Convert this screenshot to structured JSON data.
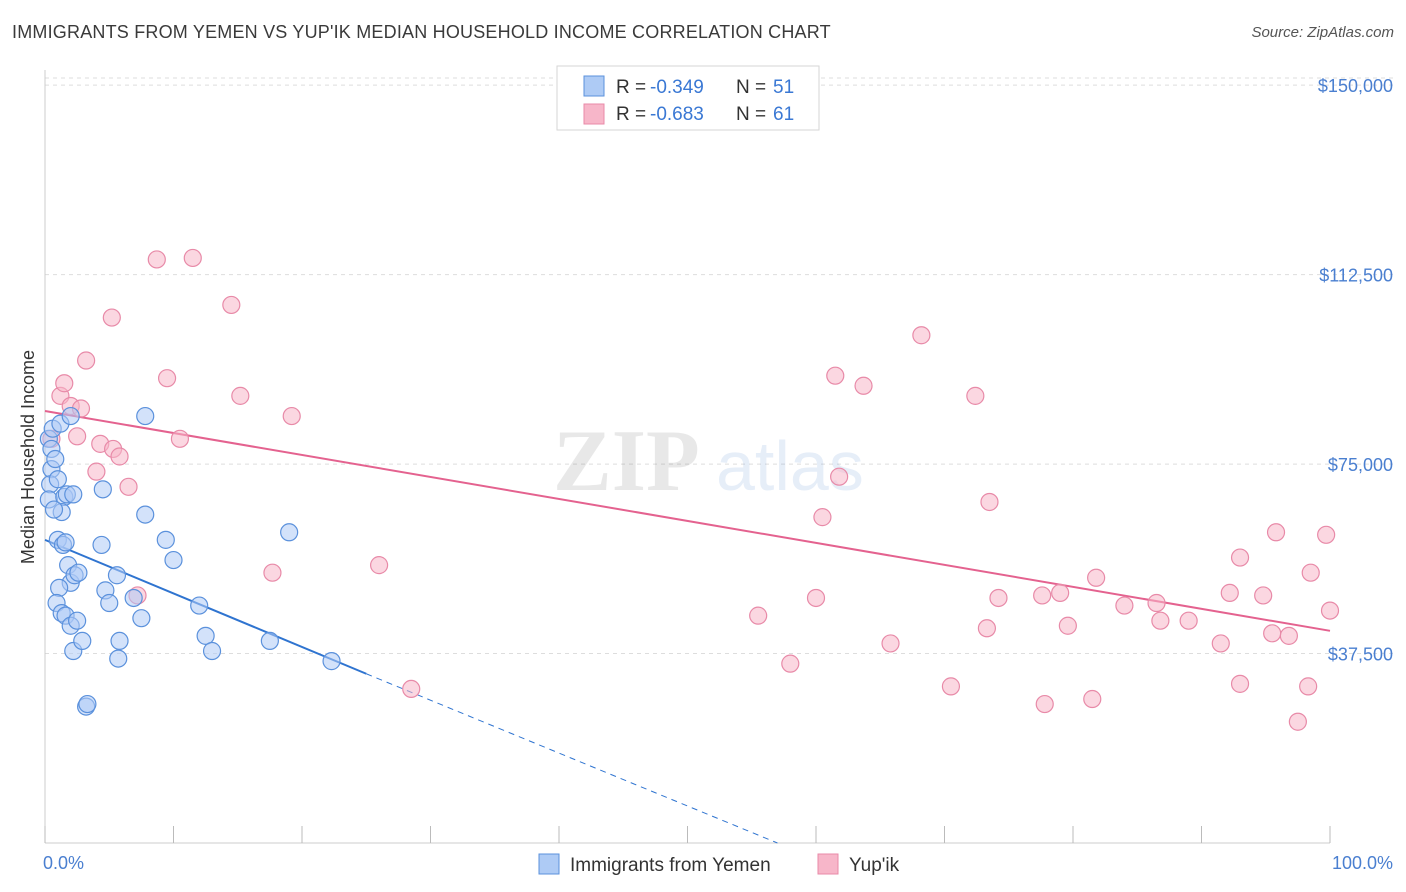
{
  "title": "IMMIGRANTS FROM YEMEN VS YUP'IK MEDIAN HOUSEHOLD INCOME CORRELATION CHART",
  "source": "Source: ZipAtlas.com",
  "colors": {
    "blue_fill": "#aecbf5",
    "blue_stroke": "#5b91dc",
    "blue_line": "#2f74d0",
    "pink_fill": "#f7b6c9",
    "pink_stroke": "#e88aa8",
    "pink_line": "#e4628f",
    "tick_label": "#4a7fd0",
    "grid": "#dddddd"
  },
  "legend": {
    "rows": [
      {
        "r_label": "R = ",
        "r_value": "-0.349",
        "n_label": "N = ",
        "n_value": "51",
        "color": "blue"
      },
      {
        "r_label": "R = ",
        "r_value": "-0.683",
        "n_label": "N = ",
        "n_value": "61",
        "color": "pink"
      }
    ]
  },
  "chart_data": {
    "type": "scatter",
    "title": "IMMIGRANTS FROM YEMEN VS YUP'IK MEDIAN HOUSEHOLD INCOME CORRELATION CHART",
    "xlabel": "",
    "ylabel": "Median Household Income",
    "xlim": [
      0,
      100
    ],
    "ylim": [
      0,
      153000
    ],
    "x_tick_labels": [
      "0.0%",
      "100.0%"
    ],
    "y_ticks": [
      37500,
      75000,
      112500,
      150000
    ],
    "y_tick_labels": [
      "$37,500",
      "$75,000",
      "$112,500",
      "$150,000"
    ],
    "grid": "horizontal dashed",
    "legend_placement": "top-center",
    "watermark": "ZIPatlas",
    "series": [
      {
        "name": "Immigrants from Yemen",
        "color": "blue",
        "points": [
          [
            0.3,
            80000
          ],
          [
            0.5,
            78000
          ],
          [
            0.6,
            82000
          ],
          [
            0.5,
            74000
          ],
          [
            0.4,
            71000
          ],
          [
            0.3,
            68000
          ],
          [
            0.8,
            76000
          ],
          [
            1.0,
            72000
          ],
          [
            1.2,
            83000
          ],
          [
            1.5,
            68500
          ],
          [
            1.7,
            69000
          ],
          [
            2.0,
            84500
          ],
          [
            2.2,
            69000
          ],
          [
            1.0,
            60000
          ],
          [
            1.4,
            59000
          ],
          [
            1.6,
            59500
          ],
          [
            1.8,
            55000
          ],
          [
            2.0,
            51500
          ],
          [
            2.3,
            53000
          ],
          [
            2.6,
            53500
          ],
          [
            1.1,
            50500
          ],
          [
            0.9,
            47500
          ],
          [
            1.3,
            45500
          ],
          [
            1.6,
            45000
          ],
          [
            2.0,
            43000
          ],
          [
            2.2,
            38000
          ],
          [
            2.5,
            44000
          ],
          [
            2.9,
            40000
          ],
          [
            3.2,
            27000
          ],
          [
            3.3,
            27500
          ],
          [
            4.4,
            59000
          ],
          [
            4.5,
            70000
          ],
          [
            4.7,
            50000
          ],
          [
            5.0,
            47500
          ],
          [
            5.6,
            53000
          ],
          [
            5.8,
            40000
          ],
          [
            5.7,
            36500
          ],
          [
            6.9,
            48500
          ],
          [
            7.5,
            44500
          ],
          [
            7.8,
            65000
          ],
          [
            7.8,
            84500
          ],
          [
            9.4,
            60000
          ],
          [
            10.0,
            56000
          ],
          [
            12.0,
            47000
          ],
          [
            12.5,
            41000
          ],
          [
            13.0,
            38000
          ],
          [
            17.5,
            40000
          ],
          [
            19.0,
            61500
          ],
          [
            22.3,
            36000
          ],
          [
            1.3,
            65500
          ],
          [
            0.7,
            66000
          ]
        ]
      },
      {
        "name": "Yup'ik",
        "color": "pink",
        "points": [
          [
            0.5,
            80000
          ],
          [
            1.2,
            88500
          ],
          [
            1.5,
            91000
          ],
          [
            2.0,
            86500
          ],
          [
            2.5,
            80500
          ],
          [
            2.8,
            86000
          ],
          [
            3.2,
            95500
          ],
          [
            4.0,
            73500
          ],
          [
            4.3,
            79000
          ],
          [
            5.2,
            104000
          ],
          [
            5.3,
            78000
          ],
          [
            5.8,
            76500
          ],
          [
            6.5,
            70500
          ],
          [
            7.2,
            49000
          ],
          [
            8.7,
            115500
          ],
          [
            9.5,
            92000
          ],
          [
            10.5,
            80000
          ],
          [
            11.5,
            115800
          ],
          [
            14.5,
            106500
          ],
          [
            15.2,
            88500
          ],
          [
            17.7,
            53500
          ],
          [
            19.2,
            84500
          ],
          [
            26.0,
            55000
          ],
          [
            28.5,
            30500
          ],
          [
            55.5,
            45000
          ],
          [
            58.0,
            35500
          ],
          [
            60.0,
            48500
          ],
          [
            60.5,
            64500
          ],
          [
            61.5,
            92500
          ],
          [
            61.8,
            72500
          ],
          [
            63.7,
            90500
          ],
          [
            65.8,
            39500
          ],
          [
            68.2,
            100500
          ],
          [
            70.5,
            31000
          ],
          [
            72.4,
            88500
          ],
          [
            73.3,
            42500
          ],
          [
            73.5,
            67500
          ],
          [
            74.2,
            48500
          ],
          [
            77.6,
            49000
          ],
          [
            77.8,
            27500
          ],
          [
            79.0,
            49500
          ],
          [
            79.6,
            43000
          ],
          [
            81.5,
            28500
          ],
          [
            81.8,
            52500
          ],
          [
            84.0,
            47000
          ],
          [
            86.5,
            47500
          ],
          [
            86.8,
            44000
          ],
          [
            89.0,
            44000
          ],
          [
            91.5,
            39500
          ],
          [
            92.2,
            49500
          ],
          [
            93.0,
            31500
          ],
          [
            93.0,
            56500
          ],
          [
            94.8,
            49000
          ],
          [
            95.5,
            41500
          ],
          [
            95.8,
            61500
          ],
          [
            96.8,
            41000
          ],
          [
            97.5,
            24000
          ],
          [
            98.3,
            31000
          ],
          [
            98.5,
            53500
          ],
          [
            99.7,
            61000
          ],
          [
            100.0,
            46000
          ]
        ]
      }
    ],
    "trend_lines": [
      {
        "series": "Immigrants from Yemen",
        "x0": 0,
        "y0": 60000,
        "x1": 25,
        "y1": 33500,
        "dashed_to_x": 57,
        "dashed_to_y": 0
      },
      {
        "series": "Yup'ik",
        "x0": 0,
        "y0": 85500,
        "x1": 100,
        "y1": 42000
      }
    ]
  }
}
